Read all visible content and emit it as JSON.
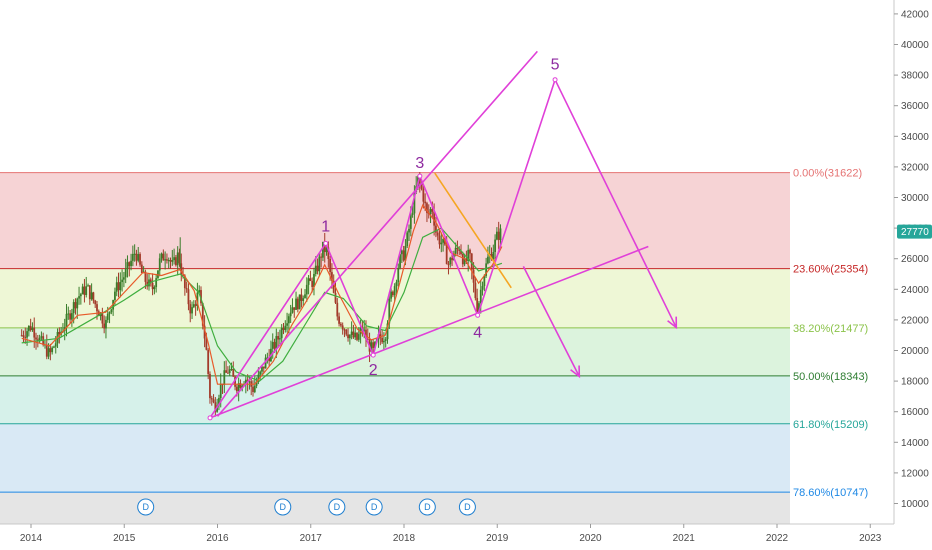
{
  "chart_data": {
    "type": "candlestick",
    "price_axis": {
      "range": [
        9000,
        43500
      ],
      "ticks": [
        10000,
        12000,
        14000,
        16000,
        18000,
        20000,
        22000,
        24000,
        26000,
        28000,
        30000,
        32000,
        34000,
        36000,
        38000,
        40000,
        42000
      ]
    },
    "time_axis": {
      "range": [
        2013.9,
        2023.4
      ],
      "tick_labels": [
        "2014",
        "2015",
        "2016",
        "2017",
        "2018",
        "2019",
        "2020",
        "2021",
        "2022",
        "2023"
      ]
    },
    "last_price": {
      "label": "27770",
      "value": 27770,
      "color": "#26a69a"
    },
    "fib_levels": [
      {
        "label": "0.00%(31622)",
        "value": 31622,
        "color": "#e57373",
        "band_color": "#f6d3d5"
      },
      {
        "label": "23.60%(25354)",
        "value": 25354,
        "color": "#c62828",
        "band_color": "#eef7d6"
      },
      {
        "label": "38.20%(21477)",
        "value": 21477,
        "color": "#8bc34a",
        "band_color": "#dcf3dd"
      },
      {
        "label": "50.00%(18343)",
        "value": 18343,
        "color": "#2e7d32",
        "band_color": "#d6f1ea"
      },
      {
        "label": "61.80%(15209)",
        "value": 15209,
        "color": "#26a69a",
        "band_color": "#d9e9f5"
      },
      {
        "label": "78.60%(10747)",
        "value": 10747,
        "color": "#1e88e5",
        "band_color": "#e5e5e5"
      }
    ],
    "wave_points": [
      {
        "label": "",
        "x": 2015.92,
        "y": 15600
      },
      {
        "label": "1",
        "x": 2017.16,
        "y": 27000
      },
      {
        "label": "2",
        "x": 2017.67,
        "y": 19700
      },
      {
        "label": "3",
        "x": 2018.17,
        "y": 31400
      },
      {
        "label": "4",
        "x": 2018.79,
        "y": 22300
      },
      {
        "label": "5",
        "x": 2019.62,
        "y": 37700
      }
    ],
    "projection_down": [
      {
        "x": 2019.62,
        "y": 37700
      },
      {
        "x": 2020.92,
        "y": 21500
      }
    ],
    "upper_trendline": [
      {
        "x": 2016.0,
        "y": 15700
      },
      {
        "x": 2019.43,
        "y": 39550
      }
    ],
    "lower_trendline": [
      {
        "x": 2015.92,
        "y": 15600
      },
      {
        "x": 2020.62,
        "y": 26800
      }
    ],
    "bear_arrow": [
      {
        "x": 2019.28,
        "y": 25500
      },
      {
        "x": 2019.88,
        "y": 18300
      }
    ],
    "orange_trendline": [
      {
        "x": 2018.33,
        "y": 31600
      },
      {
        "x": 2019.15,
        "y": 24100
      }
    ],
    "dividend_markers": {
      "label": "D",
      "dates": [
        2015.23,
        2016.7,
        2017.28,
        2017.68,
        2018.25,
        2018.68
      ]
    },
    "price_series": [
      [
        2013.9,
        21000
      ],
      [
        2014.0,
        21600
      ],
      [
        2014.1,
        20600
      ],
      [
        2014.2,
        19700
      ],
      [
        2014.3,
        21000
      ],
      [
        2014.4,
        22200
      ],
      [
        2014.5,
        23500
      ],
      [
        2014.6,
        24100
      ],
      [
        2014.7,
        22900
      ],
      [
        2014.8,
        21700
      ],
      [
        2014.9,
        23900
      ],
      [
        2015.0,
        24900
      ],
      [
        2015.08,
        25900
      ],
      [
        2015.12,
        26500
      ],
      [
        2015.2,
        24800
      ],
      [
        2015.3,
        24000
      ],
      [
        2015.38,
        25800
      ],
      [
        2015.45,
        26400
      ],
      [
        2015.52,
        25500
      ],
      [
        2015.58,
        26300
      ],
      [
        2015.65,
        24000
      ],
      [
        2015.72,
        22500
      ],
      [
        2015.8,
        23800
      ],
      [
        2015.85,
        21500
      ],
      [
        2015.88,
        20000
      ],
      [
        2015.92,
        17000
      ],
      [
        2015.97,
        16300
      ],
      [
        2016.05,
        18000
      ],
      [
        2016.12,
        18800
      ],
      [
        2016.2,
        17700
      ],
      [
        2016.3,
        18200
      ],
      [
        2016.38,
        17500
      ],
      [
        2016.45,
        18300
      ],
      [
        2016.52,
        19400
      ],
      [
        2016.58,
        20000
      ],
      [
        2016.65,
        20800
      ],
      [
        2016.72,
        21900
      ],
      [
        2016.8,
        22900
      ],
      [
        2016.88,
        23200
      ],
      [
        2016.95,
        24200
      ],
      [
        2017.02,
        24500
      ],
      [
        2017.08,
        25600
      ],
      [
        2017.13,
        26700
      ],
      [
        2017.17,
        26500
      ],
      [
        2017.22,
        24600
      ],
      [
        2017.28,
        22300
      ],
      [
        2017.35,
        21600
      ],
      [
        2017.42,
        21000
      ],
      [
        2017.5,
        20700
      ],
      [
        2017.55,
        21500
      ],
      [
        2017.62,
        20400
      ],
      [
        2017.67,
        19900
      ],
      [
        2017.73,
        20800
      ],
      [
        2017.8,
        21000
      ],
      [
        2017.85,
        23400
      ],
      [
        2017.9,
        24300
      ],
      [
        2017.95,
        25900
      ],
      [
        2018.0,
        26300
      ],
      [
        2018.05,
        27800
      ],
      [
        2018.1,
        29600
      ],
      [
        2018.15,
        31200
      ],
      [
        2018.2,
        30300
      ],
      [
        2018.25,
        28700
      ],
      [
        2018.3,
        29400
      ],
      [
        2018.35,
        27500
      ],
      [
        2018.42,
        26900
      ],
      [
        2018.48,
        25600
      ],
      [
        2018.53,
        26300
      ],
      [
        2018.6,
        26800
      ],
      [
        2018.65,
        25600
      ],
      [
        2018.7,
        26300
      ],
      [
        2018.75,
        24100
      ],
      [
        2018.79,
        22700
      ],
      [
        2018.84,
        24600
      ],
      [
        2018.9,
        26000
      ],
      [
        2018.95,
        26500
      ],
      [
        2019.0,
        27500
      ],
      [
        2019.05,
        27770
      ]
    ],
    "ma_fast": [
      [
        2013.9,
        20800
      ],
      [
        2014.2,
        20300
      ],
      [
        2014.5,
        22300
      ],
      [
        2014.8,
        22500
      ],
      [
        2015.0,
        23800
      ],
      [
        2015.2,
        25100
      ],
      [
        2015.4,
        24900
      ],
      [
        2015.6,
        25300
      ],
      [
        2015.75,
        23900
      ],
      [
        2015.9,
        20500
      ],
      [
        2016.0,
        17800
      ],
      [
        2016.2,
        17800
      ],
      [
        2016.4,
        17800
      ],
      [
        2016.6,
        19300
      ],
      [
        2016.8,
        21700
      ],
      [
        2017.0,
        23700
      ],
      [
        2017.15,
        25600
      ],
      [
        2017.3,
        23700
      ],
      [
        2017.5,
        21400
      ],
      [
        2017.65,
        20700
      ],
      [
        2017.8,
        21000
      ],
      [
        2017.95,
        24300
      ],
      [
        2018.1,
        27800
      ],
      [
        2018.2,
        29500
      ],
      [
        2018.35,
        28300
      ],
      [
        2018.5,
        26400
      ],
      [
        2018.65,
        26000
      ],
      [
        2018.8,
        24400
      ],
      [
        2018.95,
        25600
      ],
      [
        2019.05,
        26800
      ]
    ],
    "ma_slow": [
      [
        2013.9,
        20500
      ],
      [
        2014.3,
        20800
      ],
      [
        2014.7,
        22200
      ],
      [
        2015.0,
        23300
      ],
      [
        2015.3,
        24500
      ],
      [
        2015.6,
        25000
      ],
      [
        2015.8,
        23800
      ],
      [
        2016.0,
        20300
      ],
      [
        2016.2,
        18600
      ],
      [
        2016.45,
        18000
      ],
      [
        2016.7,
        19300
      ],
      [
        2016.95,
        21800
      ],
      [
        2017.15,
        23800
      ],
      [
        2017.35,
        23400
      ],
      [
        2017.6,
        21600
      ],
      [
        2017.8,
        21300
      ],
      [
        2018.0,
        23800
      ],
      [
        2018.2,
        27400
      ],
      [
        2018.4,
        28000
      ],
      [
        2018.6,
        26600
      ],
      [
        2018.8,
        25200
      ],
      [
        2019.05,
        25700
      ]
    ]
  },
  "colors": {
    "wave": "#e040d8",
    "wave_label": "#8e2aa0",
    "orange": "#f5a623",
    "candle_up": "#3a7d2a",
    "candle_down": "#a33a2a",
    "ma_fast": "#e85a2a",
    "ma_slow": "#3fae3f"
  }
}
